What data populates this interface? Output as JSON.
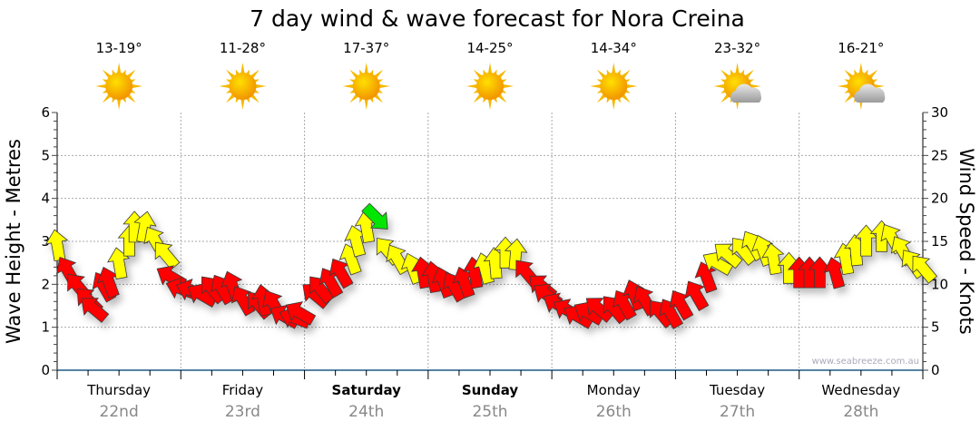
{
  "chart_data": {
    "type": "scatter",
    "title": "7 day wind & wave forecast for Nora Creina",
    "ylabel_left": "Wave Height - Metres",
    "ylabel_right": "Wind Speed - Knots",
    "ylim_left": [
      0,
      6
    ],
    "ylim_right": [
      0,
      30
    ],
    "yticks_left": [
      "0",
      "1",
      "2",
      "3",
      "4",
      "5",
      "6"
    ],
    "yticks_right": [
      "0",
      "5",
      "10",
      "15",
      "20",
      "25",
      "30"
    ],
    "xlim_hours": [
      0,
      168
    ],
    "grid": true,
    "days": [
      {
        "day": "Thursday",
        "date": "22nd",
        "bold": false,
        "temp": "13-19°",
        "icon": "sun"
      },
      {
        "day": "Friday",
        "date": "23rd",
        "bold": false,
        "temp": "11-28°",
        "icon": "sun"
      },
      {
        "day": "Saturday",
        "date": "24th",
        "bold": true,
        "temp": "17-37°",
        "icon": "sun"
      },
      {
        "day": "Sunday",
        "date": "25th",
        "bold": true,
        "temp": "14-25°",
        "icon": "sun"
      },
      {
        "day": "Monday",
        "date": "26th",
        "bold": false,
        "temp": "14-34°",
        "icon": "sun"
      },
      {
        "day": "Tuesday",
        "date": "27th",
        "bold": false,
        "temp": "23-32°",
        "icon": "sun-cloud"
      },
      {
        "day": "Wednesday",
        "date": "28th",
        "bold": false,
        "temp": "16-21°",
        "icon": "sun-cloud"
      }
    ],
    "arrow_colors": {
      "r": "#ff0000",
      "y": "#ffff00",
      "g": "#00e600"
    },
    "wind_series_fields": [
      "hour",
      "knots",
      "direction_deg",
      "color"
    ],
    "wind": [
      [
        0,
        14.6,
        350,
        "y"
      ],
      [
        2,
        11.6,
        330,
        "r"
      ],
      [
        4,
        9.8,
        320,
        "r"
      ],
      [
        6,
        8.2,
        315,
        "r"
      ],
      [
        7,
        7.2,
        310,
        "r"
      ],
      [
        9,
        9.8,
        330,
        "r"
      ],
      [
        10,
        10.3,
        340,
        "r"
      ],
      [
        12,
        12.5,
        350,
        "y"
      ],
      [
        14,
        15.1,
        0,
        "y"
      ],
      [
        15,
        16.7,
        0,
        "y"
      ],
      [
        17,
        16.7,
        10,
        "y"
      ],
      [
        19,
        15.1,
        330,
        "y"
      ],
      [
        21,
        13.5,
        320,
        "y"
      ],
      [
        22,
        10.9,
        300,
        "r"
      ],
      [
        24,
        9.5,
        290,
        "r"
      ],
      [
        26,
        9.3,
        290,
        "r"
      ],
      [
        28,
        8.8,
        300,
        "r"
      ],
      [
        30,
        9.5,
        320,
        "r"
      ],
      [
        32,
        9.5,
        330,
        "r"
      ],
      [
        34,
        9.8,
        340,
        "r"
      ],
      [
        36,
        8.2,
        330,
        "r"
      ],
      [
        39,
        7.7,
        320,
        "r"
      ],
      [
        40,
        8.2,
        350,
        "r"
      ],
      [
        42,
        7.7,
        330,
        "r"
      ],
      [
        44,
        6.3,
        300,
        "r"
      ],
      [
        46,
        6.1,
        290,
        "r"
      ],
      [
        47,
        6.7,
        300,
        "r"
      ],
      [
        50,
        8.8,
        310,
        "r"
      ],
      [
        51,
        9.5,
        320,
        "r"
      ],
      [
        53,
        10.3,
        330,
        "r"
      ],
      [
        55,
        11.4,
        330,
        "r"
      ],
      [
        57,
        13.0,
        340,
        "y"
      ],
      [
        58,
        15.1,
        345,
        "y"
      ],
      [
        60,
        16.7,
        350,
        "y"
      ],
      [
        62,
        17.7,
        135,
        "g"
      ],
      [
        64,
        14.0,
        320,
        "y"
      ],
      [
        66,
        13.0,
        330,
        "y"
      ],
      [
        69,
        11.9,
        340,
        "y"
      ],
      [
        71,
        11.4,
        350,
        "r"
      ],
      [
        73,
        10.9,
        350,
        "r"
      ],
      [
        75,
        10.3,
        340,
        "r"
      ],
      [
        77,
        9.8,
        330,
        "r"
      ],
      [
        79,
        10.3,
        340,
        "r"
      ],
      [
        81,
        11.4,
        350,
        "r"
      ],
      [
        83,
        11.9,
        345,
        "y"
      ],
      [
        85,
        12.5,
        355,
        "y"
      ],
      [
        87,
        13.7,
        0,
        "y"
      ],
      [
        89,
        13.5,
        5,
        "y"
      ],
      [
        91,
        11.4,
        320,
        "r"
      ],
      [
        94,
        9.8,
        310,
        "r"
      ],
      [
        95,
        8.8,
        305,
        "r"
      ],
      [
        97,
        7.7,
        300,
        "r"
      ],
      [
        99,
        7.0,
        300,
        "r"
      ],
      [
        101,
        6.3,
        300,
        "r"
      ],
      [
        103,
        6.7,
        300,
        "r"
      ],
      [
        105,
        7.2,
        310,
        "r"
      ],
      [
        108,
        7.2,
        320,
        "r"
      ],
      [
        110,
        7.7,
        330,
        "r"
      ],
      [
        112,
        8.8,
        340,
        "r"
      ],
      [
        114,
        8.2,
        330,
        "r"
      ],
      [
        117,
        6.7,
        320,
        "r"
      ],
      [
        119,
        6.7,
        330,
        "r"
      ],
      [
        121,
        7.7,
        330,
        "r"
      ],
      [
        124,
        8.8,
        330,
        "r"
      ],
      [
        126,
        10.9,
        340,
        "r"
      ],
      [
        128,
        12.5,
        300,
        "y"
      ],
      [
        130,
        13.5,
        310,
        "y"
      ],
      [
        133,
        14.0,
        320,
        "y"
      ],
      [
        135,
        14.6,
        330,
        "y"
      ],
      [
        137,
        14.0,
        340,
        "y"
      ],
      [
        139,
        13.0,
        350,
        "y"
      ],
      [
        142,
        11.9,
        0,
        "y"
      ],
      [
        144,
        11.4,
        0,
        "r"
      ],
      [
        146,
        11.4,
        0,
        "r"
      ],
      [
        148,
        11.4,
        0,
        "r"
      ],
      [
        151,
        11.4,
        345,
        "r"
      ],
      [
        153,
        13.0,
        350,
        "y"
      ],
      [
        155,
        14.0,
        355,
        "y"
      ],
      [
        157,
        15.1,
        0,
        "y"
      ],
      [
        160,
        15.6,
        0,
        "y"
      ],
      [
        162,
        15.4,
        330,
        "y"
      ],
      [
        164,
        14.0,
        330,
        "y"
      ],
      [
        166,
        12.5,
        325,
        "y"
      ],
      [
        168,
        11.9,
        320,
        "y"
      ]
    ]
  },
  "credit": "www.seabreeze.com.au"
}
